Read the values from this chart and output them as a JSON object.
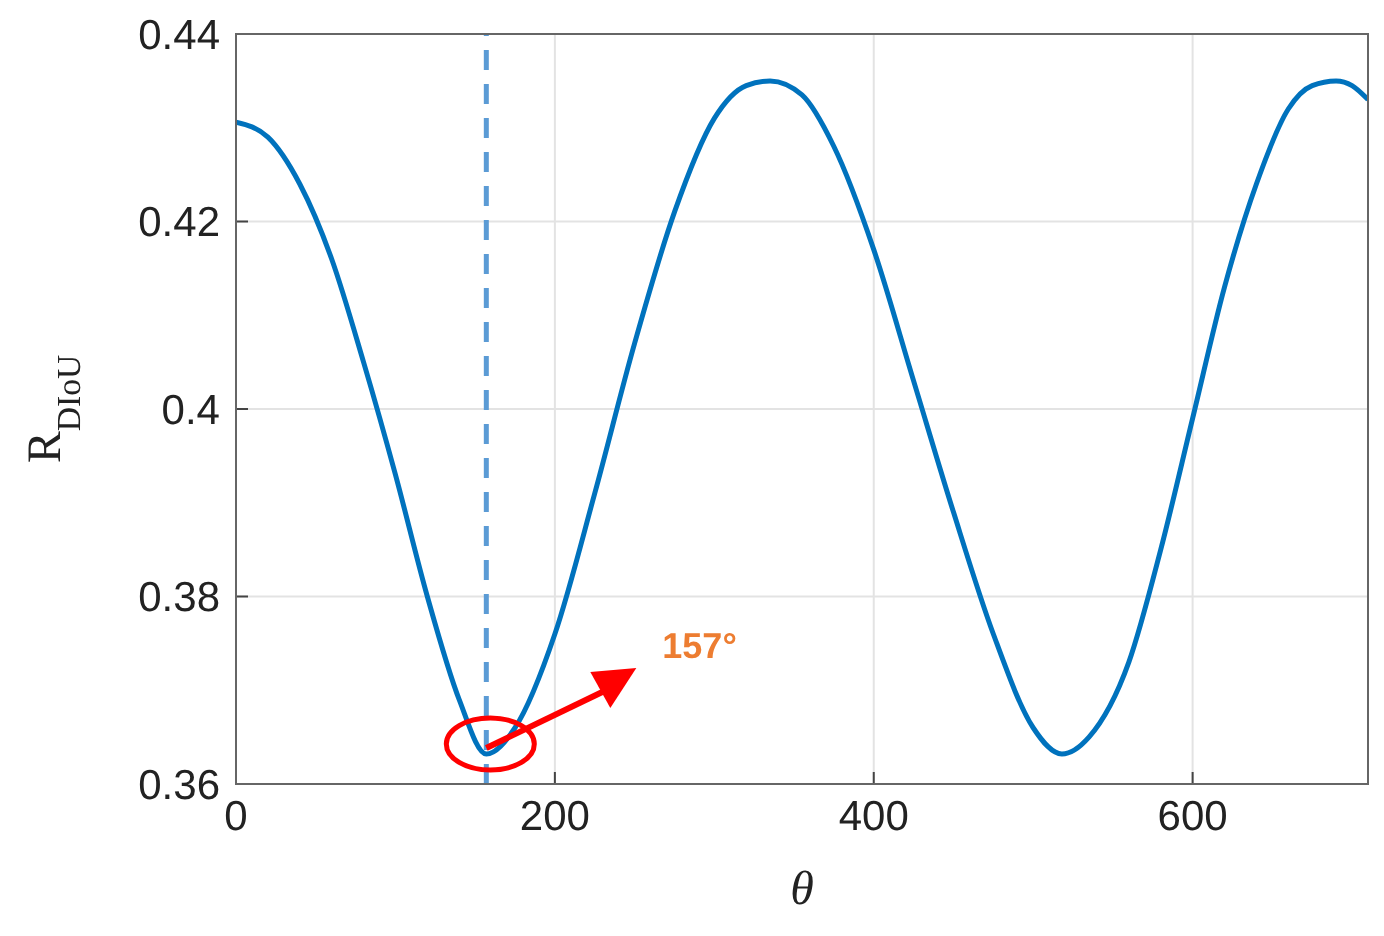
{
  "chart_data": {
    "type": "line",
    "xlabel": "θ",
    "ylabel": "R$_{DIoU}$",
    "x": [
      0,
      20,
      40,
      60,
      80,
      100,
      120,
      140,
      157,
      175,
      200,
      225,
      250,
      275,
      300,
      320,
      335,
      355,
      375,
      400,
      425,
      450,
      475,
      500,
      518,
      535,
      560,
      580,
      600,
      620,
      640,
      660,
      675,
      690,
      700,
      710
    ],
    "series": [
      {
        "color": "#0072bd",
        "values": [
          0.4306,
          0.429,
          0.424,
          0.416,
          0.405,
          0.393,
          0.38,
          0.369,
          0.3632,
          0.366,
          0.376,
          0.391,
          0.407,
          0.421,
          0.431,
          0.4345,
          0.435,
          0.4335,
          0.428,
          0.417,
          0.403,
          0.389,
          0.376,
          0.366,
          0.3632,
          0.365,
          0.373,
          0.385,
          0.399,
          0.413,
          0.424,
          0.432,
          0.4345,
          0.435,
          0.4345,
          0.433
        ]
      }
    ],
    "xlim": [
      0,
      710
    ],
    "xticks": [
      0,
      200,
      400,
      600
    ],
    "ylim": [
      0.36,
      0.44
    ],
    "yticks": [
      0.36,
      0.38,
      0.4,
      0.42,
      0.44
    ],
    "grid": true,
    "marker": "none",
    "line_style": "solid",
    "ref_lines": [
      {
        "axis": "x",
        "value": 157,
        "color": "#5b9bd5",
        "line_style": "dashed"
      }
    ],
    "annotations": [
      "157°"
    ]
  }
}
